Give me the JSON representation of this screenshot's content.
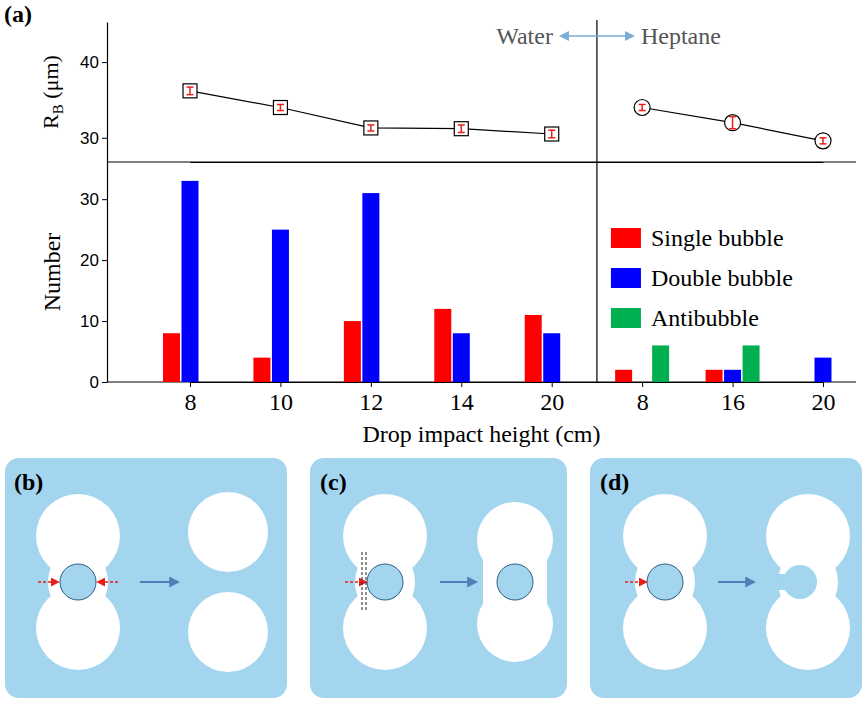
{
  "figure": {
    "panel_labels": [
      "(a)",
      "(b)",
      "(c)",
      "(d)"
    ]
  },
  "chart_data": [
    {
      "type": "line",
      "y_label": "RB (μm)",
      "categories": [
        "8",
        "10",
        "12",
        "14",
        "20",
        "8",
        "16",
        "20"
      ],
      "ylim": [
        26.8,
        45.3
      ],
      "yticks": [
        30,
        40
      ],
      "tick_labels": "y",
      "annotations": [
        "Water",
        "Heptane"
      ],
      "series": [
        {
          "color": "#000000",
          "marker": "square",
          "values": [
            36.2,
            34.0,
            31.3,
            31.2,
            30.5,
            null,
            null,
            null
          ],
          "errors": [
            0.5,
            0.4,
            0.4,
            0.5,
            0.5,
            null,
            null,
            null
          ]
        },
        {
          "color": "#000000",
          "marker": "circle",
          "values": [
            null,
            null,
            null,
            null,
            null,
            34.0,
            32.0,
            29.6
          ],
          "errors": [
            null,
            null,
            null,
            null,
            null,
            0.4,
            0.8,
            0.4
          ]
        }
      ]
    },
    {
      "type": "bar",
      "x_label": "Drop impact height (cm)",
      "y_label": "Number",
      "categories": [
        "8",
        "10",
        "12",
        "14",
        "20",
        "8",
        "16",
        "20"
      ],
      "ylim": [
        0,
        36.1
      ],
      "yticks": [
        0,
        10,
        20,
        30
      ],
      "legend": "right",
      "series": [
        {
          "name": "Single bubble",
          "color": "#ff0000",
          "values": [
            8,
            4,
            10,
            12,
            11,
            2,
            2,
            0
          ]
        },
        {
          "name": "Double bubble",
          "color": "#0000ff",
          "values": [
            33,
            25,
            31,
            8,
            8,
            0,
            2,
            4
          ]
        },
        {
          "name": "Antibubble",
          "color": "#00b050",
          "values": [
            0,
            0,
            0,
            0,
            0,
            6,
            6,
            0
          ]
        }
      ]
    }
  ]
}
